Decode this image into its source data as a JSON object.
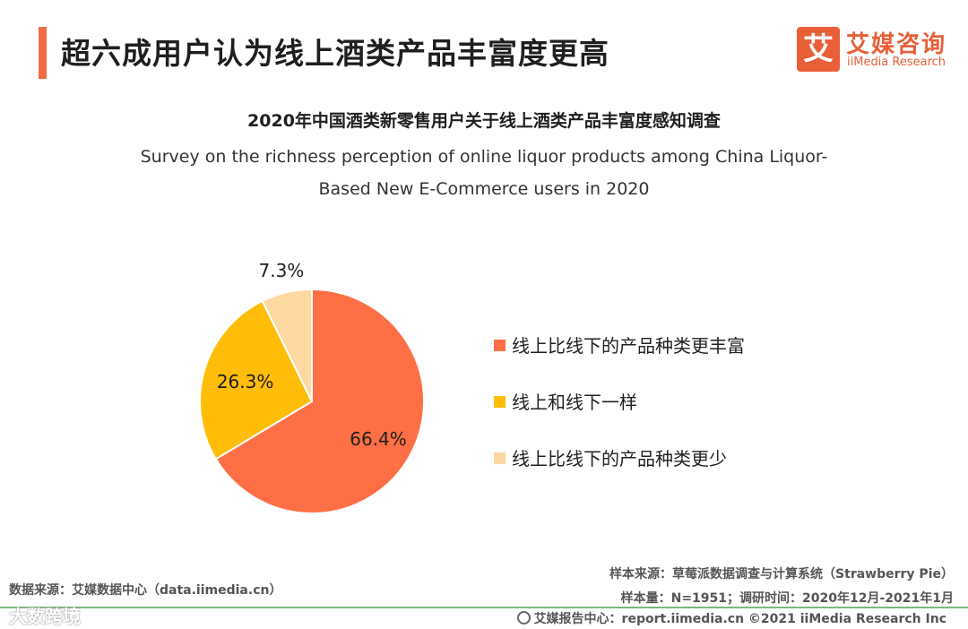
{
  "header": {
    "title": "超六成用户认为线上酒类产品丰富度更高"
  },
  "logo": {
    "glyph": "艾",
    "name_cn": "艾媒咨询",
    "name_en": "iiMedia Research",
    "color": "#e85f38"
  },
  "chart_data": {
    "type": "pie",
    "title": "2020年中国酒类新零售用户关于线上酒类产品丰富度感知调查",
    "subtitle_line1": "Survey on the richness perception of online liquor products among China Liquor-",
    "subtitle_line2": "Based New E-Commerce users in 2020",
    "legend_position": "right",
    "slices": [
      {
        "label": "线上比线下的产品种类更丰富",
        "value": 66.4,
        "value_text": "66.4%",
        "color": "#ff6f45"
      },
      {
        "label": "线上和线下一样",
        "value": 26.3,
        "value_text": "26.3%",
        "color": "#ffbd0a"
      },
      {
        "label": "线上比线下的产品种类更少",
        "value": 7.3,
        "value_text": "7.3%",
        "color": "#fdd8a0"
      }
    ]
  },
  "footer": {
    "source_left": "数据来源：艾媒数据中心（data.iimedia.cn）",
    "sample_source": "样本来源：草莓派数据调查与计算系统（Strawberry Pie）",
    "sample_size": "样本量：N=1951；调研时间：2020年12月-2021年1月",
    "report_center": "艾媒报告中心：report.iimedia.cn  ©2021  iiMedia Research  Inc",
    "watermark": "大数跨境"
  }
}
